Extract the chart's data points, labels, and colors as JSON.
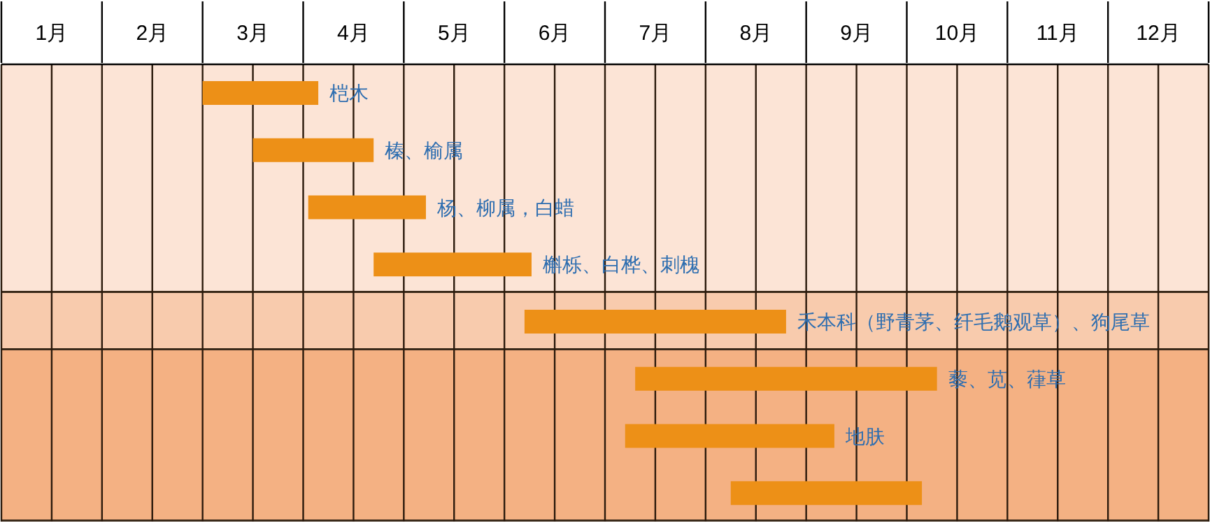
{
  "chart_data": {
    "type": "bar",
    "orientation": "horizontal",
    "categories": [
      "桤木",
      "榛、榆属",
      "杨、柳属，白蜡",
      "槲栎、白桦、刺槐",
      "禾本科（野青茅、纤毛鹅观草）、狗尾草",
      "藜、苋、葎草",
      "地肤",
      null
    ],
    "base": [
      2.0,
      2.5,
      3.05,
      3.7,
      5.2,
      6.3,
      6.2,
      7.25
    ],
    "values": [
      1.15,
      1.2,
      1.17,
      1.57,
      2.6,
      3.0,
      2.08,
      1.9
    ],
    "color": "#ed9017",
    "xlim": [
      0,
      12
    ],
    "xticks": [
      {
        "value": 0,
        "label": null
      },
      {
        "value": 0.5,
        "label": "1月"
      },
      {
        "value": 1,
        "label": null
      },
      {
        "value": 1.5,
        "label": "2月"
      },
      {
        "value": 2,
        "label": null
      },
      {
        "value": 2.5,
        "label": "3月"
      },
      {
        "value": 3,
        "label": null
      },
      {
        "value": 3.5,
        "label": "4月"
      },
      {
        "value": 4,
        "label": null
      },
      {
        "value": 4.5,
        "label": "5月"
      },
      {
        "value": 5,
        "label": null
      },
      {
        "value": 5.5,
        "label": "6月"
      },
      {
        "value": 6,
        "label": null
      },
      {
        "value": 6.5,
        "label": "7月"
      },
      {
        "value": 7,
        "label": null
      },
      {
        "value": 7.5,
        "label": "8月"
      },
      {
        "value": 8,
        "label": null
      },
      {
        "value": 8.5,
        "label": "9月"
      },
      {
        "value": 9,
        "label": null
      },
      {
        "value": 9.5,
        "label": "10月"
      },
      {
        "value": 10,
        "label": null
      },
      {
        "value": 10.5,
        "label": "11月"
      },
      {
        "value": 11,
        "label": null
      },
      {
        "value": 11.5,
        "label": "12月"
      },
      {
        "value": 12,
        "label": null
      }
    ],
    "grid": "x"
  }
}
